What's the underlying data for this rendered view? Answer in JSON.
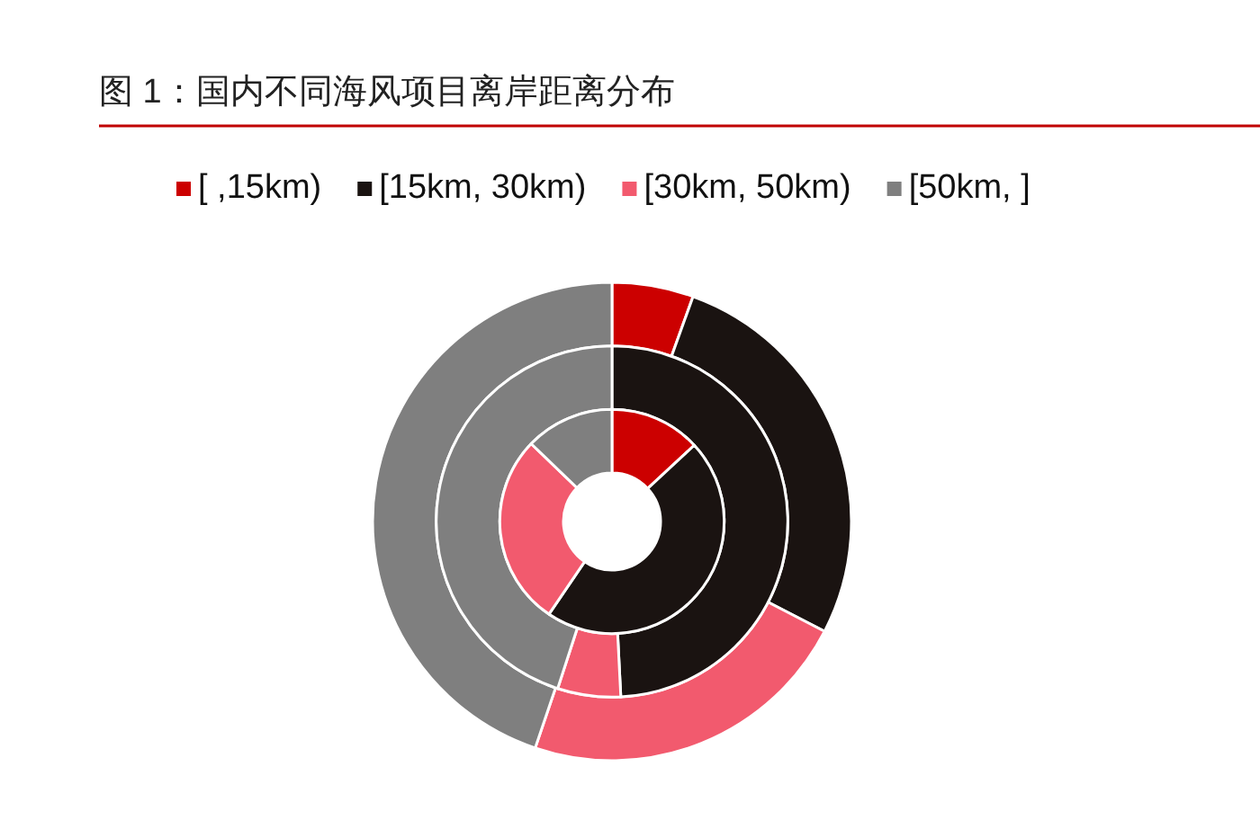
{
  "chart_data": {
    "type": "donut",
    "title": "图 1：国内不同海风项目离岸距离分布",
    "categories": [
      "[ ,15km)",
      "[15km, 30km)",
      "[30km, 50km)",
      "[50km, ]"
    ],
    "colors": [
      "#cc0000",
      "#1a1311",
      "#f25a6e",
      "#7f7f7f"
    ],
    "legend": "top",
    "series": [
      {
        "values": [
          5.5,
          27.1,
          22.6,
          44.8
        ]
      },
      {
        "values": [
          0,
          49.2,
          5.8,
          45.0
        ]
      },
      {
        "values": [
          13.1,
          46.4,
          27.7,
          12.8
        ]
      }
    ]
  }
}
